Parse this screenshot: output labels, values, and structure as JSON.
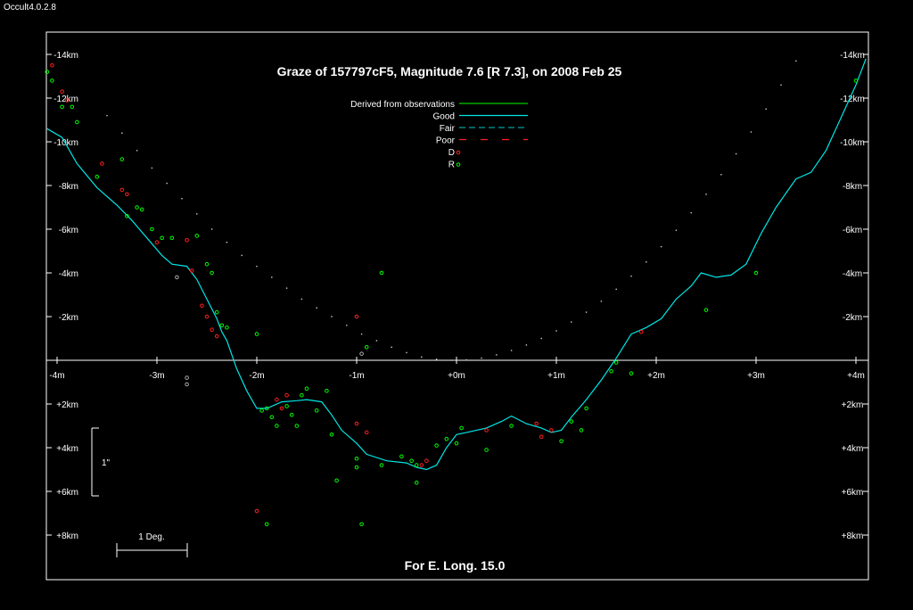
{
  "window": {
    "app_title": "Occult4.0.2.8"
  },
  "colors": {
    "background": "#000000",
    "axes": "#ffffff",
    "good": "#00e5e5",
    "derived": "#00cc00",
    "fair": "#00a0a0",
    "poor": "#ff2020",
    "disappear": "#ff2020",
    "reappear": "#00ff00",
    "other": "#aaaaaa",
    "limb_dots": "#cccccc"
  },
  "chart_data": {
    "type": "scatter",
    "title": "Graze of  157797cF5,  Magnitude 7.6 [R 7.3],  on 2008 Feb 25",
    "footer": "For E. Long. 15.0",
    "x_axis": {
      "unit": "m",
      "range": [
        -4.1,
        4.1
      ],
      "tick_values": [
        -4,
        -3,
        -2,
        -1,
        0,
        1,
        2,
        3,
        4
      ],
      "tick_labels": [
        "-4m",
        "-3m",
        "-2m",
        "-1m",
        "+0m",
        "+1m",
        "+2m",
        "+3m",
        "+4m"
      ]
    },
    "y_axis": {
      "unit": "km",
      "range": [
        -14.5,
        10.0
      ],
      "tick_values": [
        -14,
        -12,
        -10,
        -8,
        -6,
        -4,
        -2,
        2,
        4,
        6,
        8
      ],
      "tick_labels": [
        "-14km",
        "-12km",
        "-10km",
        "-8km",
        "-6km",
        "-4km",
        "-2km",
        "+2km",
        "+4km",
        "+6km",
        "+8km"
      ]
    },
    "scale_bars": {
      "vertical_label": "1\"",
      "horizontal_label": "1 Deg."
    },
    "legend": {
      "items": [
        {
          "label": "Derived from observations",
          "style": "solid",
          "color_key": "derived"
        },
        {
          "label": "Good",
          "style": "solid",
          "color_key": "good"
        },
        {
          "label": "Fair",
          "style": "dashed",
          "color_key": "fair"
        },
        {
          "label": "Poor",
          "style": "dashed-long",
          "color_key": "poor"
        },
        {
          "label": "D",
          "style": "point",
          "color_key": "disappear"
        },
        {
          "label": "R",
          "style": "point",
          "color_key": "reappear"
        }
      ]
    },
    "limb_profile": [
      [
        -4.1,
        -10.6
      ],
      [
        -3.95,
        -10.2
      ],
      [
        -3.8,
        -9.0
      ],
      [
        -3.6,
        -7.9
      ],
      [
        -3.4,
        -7.1
      ],
      [
        -3.25,
        -6.4
      ],
      [
        -3.1,
        -5.6
      ],
      [
        -2.95,
        -4.8
      ],
      [
        -2.85,
        -4.4
      ],
      [
        -2.7,
        -4.3
      ],
      [
        -2.6,
        -3.7
      ],
      [
        -2.5,
        -2.8
      ],
      [
        -2.4,
        -1.9
      ],
      [
        -2.35,
        -1.3
      ],
      [
        -2.3,
        -0.9
      ],
      [
        -2.2,
        0.4
      ],
      [
        -2.1,
        1.4
      ],
      [
        -2.0,
        2.2
      ],
      [
        -1.9,
        2.2
      ],
      [
        -1.75,
        1.9
      ],
      [
        -1.6,
        1.85
      ],
      [
        -1.5,
        1.8
      ],
      [
        -1.35,
        1.9
      ],
      [
        -1.25,
        2.5
      ],
      [
        -1.15,
        3.2
      ],
      [
        -1.0,
        3.8
      ],
      [
        -0.9,
        4.3
      ],
      [
        -0.7,
        4.6
      ],
      [
        -0.5,
        4.7
      ],
      [
        -0.4,
        4.9
      ],
      [
        -0.3,
        5.0
      ],
      [
        -0.2,
        4.8
      ],
      [
        -0.1,
        4.0
      ],
      [
        0.0,
        3.4
      ],
      [
        0.1,
        3.3
      ],
      [
        0.3,
        3.1
      ],
      [
        0.45,
        2.8
      ],
      [
        0.55,
        2.55
      ],
      [
        0.7,
        2.9
      ],
      [
        0.85,
        3.1
      ],
      [
        0.95,
        3.3
      ],
      [
        1.05,
        3.2
      ],
      [
        1.15,
        2.6
      ],
      [
        1.3,
        1.8
      ],
      [
        1.45,
        0.9
      ],
      [
        1.6,
        -0.1
      ],
      [
        1.75,
        -1.2
      ],
      [
        1.9,
        -1.5
      ],
      [
        2.05,
        -1.9
      ],
      [
        2.2,
        -2.8
      ],
      [
        2.35,
        -3.4
      ],
      [
        2.45,
        -4.0
      ],
      [
        2.6,
        -3.8
      ],
      [
        2.75,
        -3.9
      ],
      [
        2.9,
        -4.4
      ],
      [
        3.05,
        -5.8
      ],
      [
        3.2,
        -7.0
      ],
      [
        3.4,
        -8.3
      ],
      [
        3.55,
        -8.6
      ],
      [
        3.7,
        -9.6
      ],
      [
        3.85,
        -11.1
      ],
      [
        4.0,
        -12.6
      ],
      [
        4.1,
        -13.8
      ]
    ],
    "predicted_limb": [
      [
        -3.5,
        -11.2
      ],
      [
        -3.35,
        -10.4
      ],
      [
        -3.2,
        -9.6
      ],
      [
        -3.05,
        -8.8
      ],
      [
        -2.9,
        -8.1
      ],
      [
        -2.75,
        -7.4
      ],
      [
        -2.6,
        -6.7
      ],
      [
        -2.45,
        -6.0
      ],
      [
        -2.3,
        -5.4
      ],
      [
        -2.15,
        -4.8
      ],
      [
        -2.0,
        -4.3
      ],
      [
        -1.85,
        -3.8
      ],
      [
        -1.7,
        -3.3
      ],
      [
        -1.55,
        -2.8
      ],
      [
        -1.4,
        -2.4
      ],
      [
        -1.25,
        -2.0
      ],
      [
        -1.1,
        -1.6
      ],
      [
        -0.95,
        -1.2
      ],
      [
        -0.8,
        -0.9
      ],
      [
        -0.65,
        -0.6
      ],
      [
        -0.5,
        -0.35
      ],
      [
        -0.35,
        -0.15
      ],
      [
        -0.2,
        -0.05
      ],
      [
        -0.05,
        0.0
      ],
      [
        0.1,
        -0.02
      ],
      [
        0.25,
        -0.1
      ],
      [
        0.4,
        -0.25
      ],
      [
        0.55,
        -0.45
      ],
      [
        0.7,
        -0.7
      ],
      [
        0.85,
        -1.0
      ],
      [
        1.0,
        -1.35
      ],
      [
        1.15,
        -1.75
      ],
      [
        1.3,
        -2.2
      ],
      [
        1.45,
        -2.7
      ],
      [
        1.6,
        -3.25
      ],
      [
        1.75,
        -3.85
      ],
      [
        1.9,
        -4.5
      ],
      [
        2.05,
        -5.2
      ],
      [
        2.2,
        -5.95
      ],
      [
        2.35,
        -6.75
      ],
      [
        2.5,
        -7.6
      ],
      [
        2.65,
        -8.5
      ],
      [
        2.8,
        -9.45
      ],
      [
        2.95,
        -10.45
      ],
      [
        3.1,
        -11.5
      ],
      [
        3.25,
        -12.6
      ],
      [
        3.4,
        -13.7
      ]
    ],
    "disappear_points": [
      [
        -4.05,
        -13.5
      ],
      [
        -3.95,
        -12.3
      ],
      [
        -3.9,
        -11.9
      ],
      [
        -3.55,
        -9.0
      ],
      [
        -3.35,
        -7.8
      ],
      [
        -3.3,
        -7.6
      ],
      [
        -3.0,
        -5.4
      ],
      [
        -2.7,
        -5.5
      ],
      [
        -2.65,
        -4.1
      ],
      [
        -2.55,
        -2.5
      ],
      [
        -2.5,
        -2.0
      ],
      [
        -2.45,
        -1.4
      ],
      [
        -2.4,
        -1.1
      ],
      [
        -1.8,
        1.8
      ],
      [
        -1.75,
        2.2
      ],
      [
        -1.7,
        1.6
      ],
      [
        -1.0,
        -2.0
      ],
      [
        -1.0,
        2.9
      ],
      [
        -0.9,
        3.3
      ],
      [
        -0.35,
        4.8
      ],
      [
        -0.3,
        4.6
      ],
      [
        0.3,
        3.2
      ],
      [
        0.8,
        2.9
      ],
      [
        0.85,
        3.5
      ],
      [
        0.95,
        3.2
      ],
      [
        1.85,
        -1.3
      ],
      [
        -2.0,
        6.9
      ]
    ],
    "reappear_points": [
      [
        -4.1,
        -13.2
      ],
      [
        -4.05,
        -12.8
      ],
      [
        -3.95,
        -11.6
      ],
      [
        -3.85,
        -11.6
      ],
      [
        -3.8,
        -10.9
      ],
      [
        -3.6,
        -8.4
      ],
      [
        -3.35,
        -9.2
      ],
      [
        -3.3,
        -6.6
      ],
      [
        -3.2,
        -7.0
      ],
      [
        -3.15,
        -6.9
      ],
      [
        -3.05,
        -6.0
      ],
      [
        -2.95,
        -5.6
      ],
      [
        -2.85,
        -5.6
      ],
      [
        -2.6,
        -5.7
      ],
      [
        -2.5,
        -4.4
      ],
      [
        -2.45,
        -4.0
      ],
      [
        -2.4,
        -2.2
      ],
      [
        -2.35,
        -1.6
      ],
      [
        -2.3,
        -1.5
      ],
      [
        -2.0,
        -1.2
      ],
      [
        -1.95,
        2.3
      ],
      [
        -1.9,
        2.2
      ],
      [
        -1.85,
        2.6
      ],
      [
        -1.8,
        3.0
      ],
      [
        -1.7,
        2.1
      ],
      [
        -1.65,
        2.5
      ],
      [
        -1.6,
        3.0
      ],
      [
        -1.55,
        1.6
      ],
      [
        -1.5,
        1.3
      ],
      [
        -1.4,
        2.3
      ],
      [
        -1.3,
        1.4
      ],
      [
        -1.25,
        3.4
      ],
      [
        -1.2,
        5.5
      ],
      [
        -1.0,
        4.5
      ],
      [
        -1.0,
        4.9
      ],
      [
        -0.9,
        -0.6
      ],
      [
        -0.75,
        -4.0
      ],
      [
        -0.75,
        4.8
      ],
      [
        -0.55,
        4.4
      ],
      [
        -0.45,
        4.6
      ],
      [
        -0.4,
        4.8
      ],
      [
        -0.4,
        5.6
      ],
      [
        -0.2,
        3.9
      ],
      [
        -0.1,
        3.6
      ],
      [
        0.0,
        3.8
      ],
      [
        0.05,
        3.1
      ],
      [
        0.3,
        4.1
      ],
      [
        0.55,
        3.0
      ],
      [
        1.05,
        3.7
      ],
      [
        1.15,
        2.8
      ],
      [
        1.25,
        3.2
      ],
      [
        1.3,
        2.2
      ],
      [
        1.55,
        0.5
      ],
      [
        1.6,
        0.1
      ],
      [
        1.75,
        0.6
      ],
      [
        2.5,
        -2.3
      ],
      [
        3.0,
        -4.0
      ],
      [
        4.0,
        -12.8
      ],
      [
        -1.9,
        7.5
      ],
      [
        -0.95,
        7.5
      ]
    ],
    "other_points": [
      [
        -2.8,
        -3.8
      ],
      [
        -2.7,
        0.8
      ],
      [
        -2.7,
        1.1
      ],
      [
        -0.95,
        -0.3
      ]
    ]
  }
}
